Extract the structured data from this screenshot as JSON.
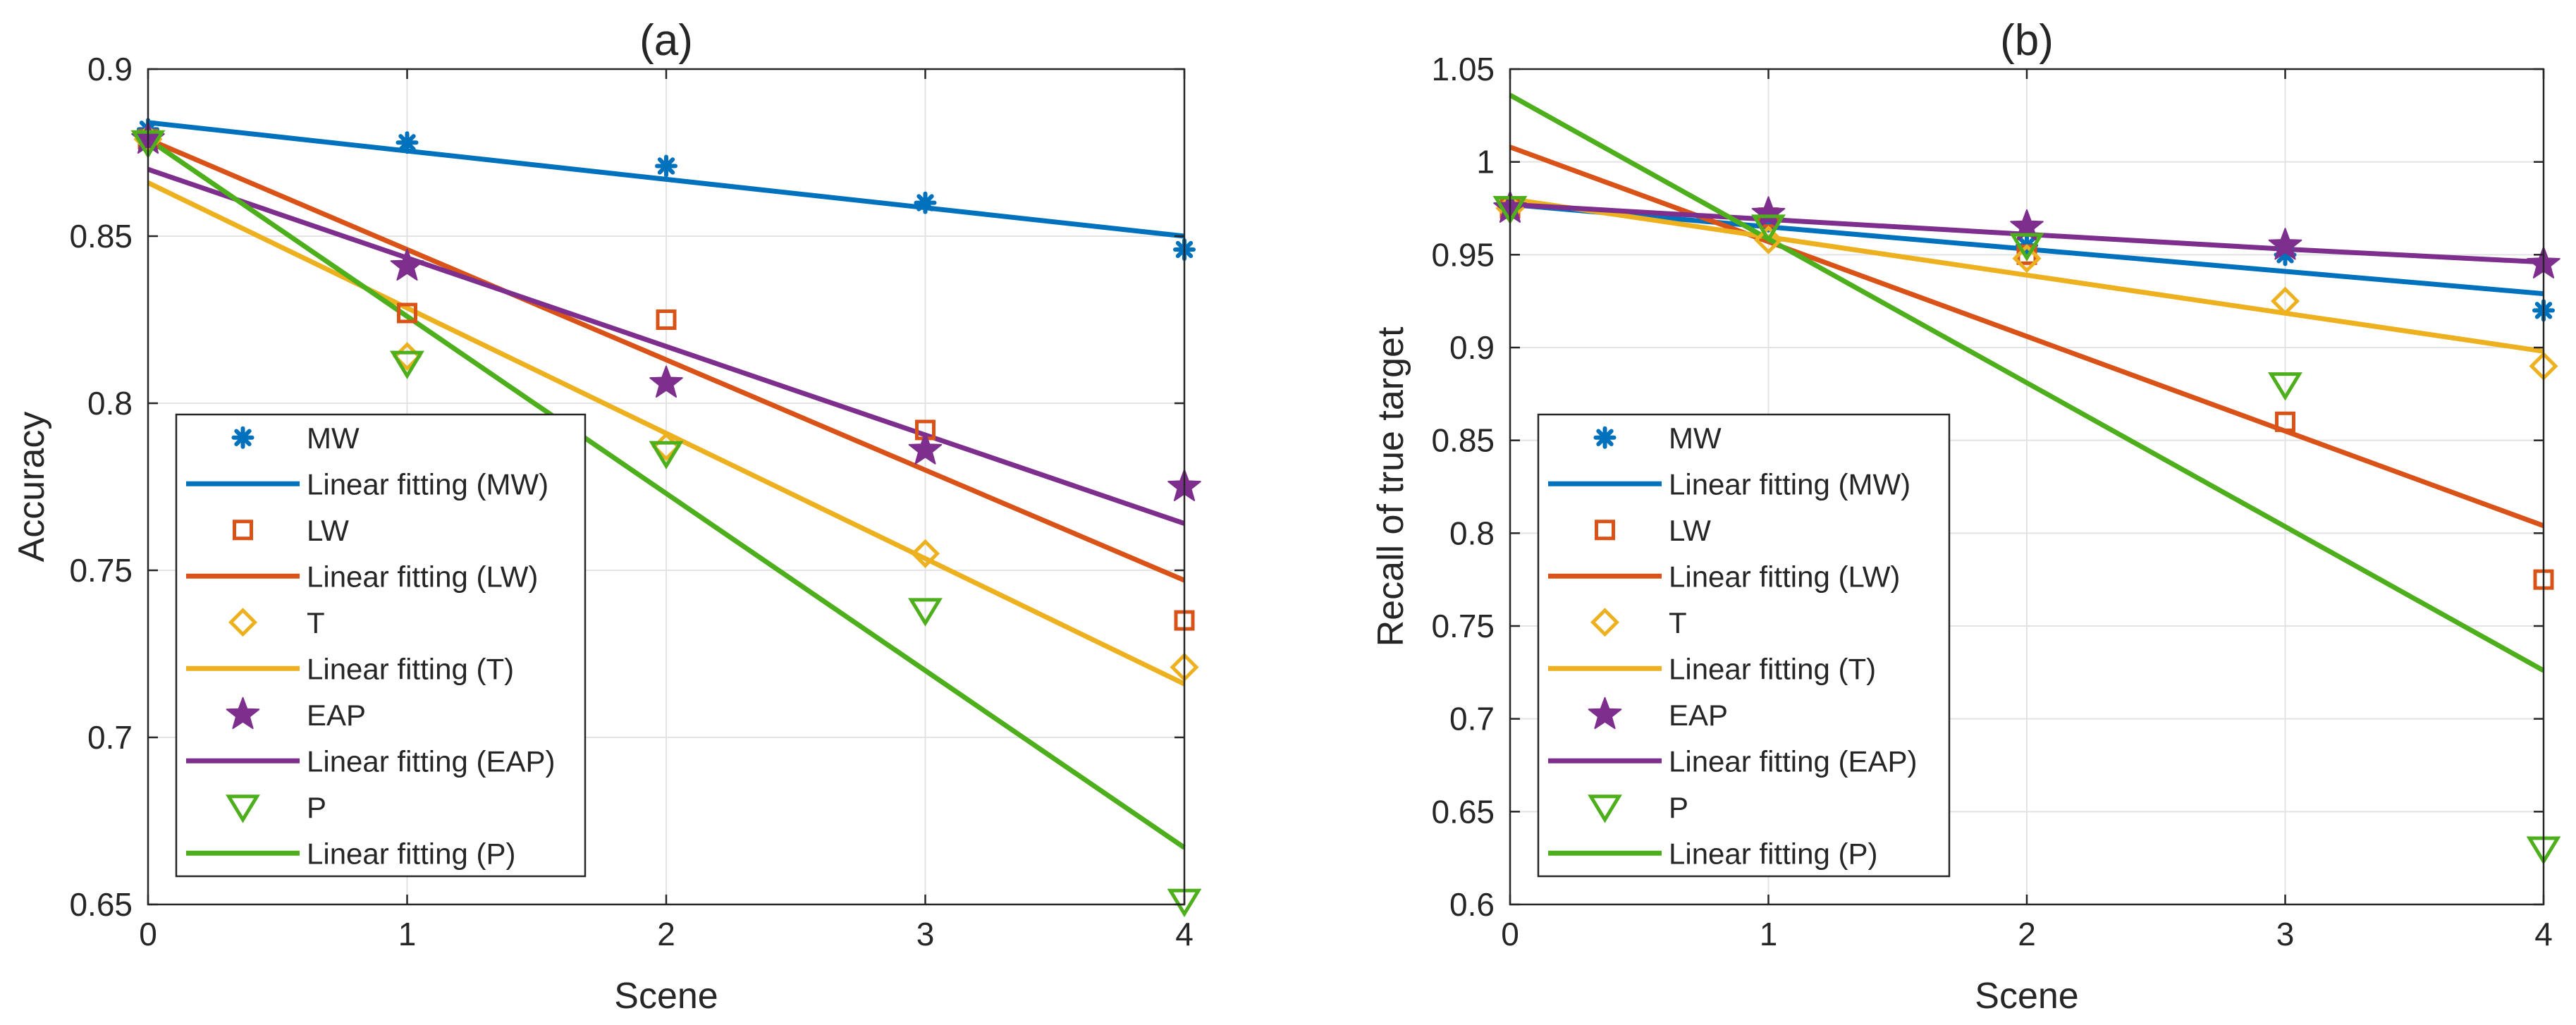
{
  "chart_data": [
    {
      "type": "scatter",
      "title": "(a)",
      "xlabel": "Scene",
      "ylabel": "Accuracy",
      "xlim": [
        0,
        4
      ],
      "ylim": [
        0.65,
        0.9
      ],
      "xticks": [
        0,
        1,
        2,
        3,
        4
      ],
      "yticks": [
        0.65,
        0.7,
        0.75,
        0.8,
        0.85,
        0.9
      ],
      "xtick_labels": [
        "0",
        "1",
        "2",
        "3",
        "4"
      ],
      "ytick_labels": [
        "0.65",
        "0.7",
        "0.75",
        "0.8",
        "0.85",
        "0.9"
      ],
      "grid": true,
      "legend_position": "bottom-left",
      "x": [
        0,
        1,
        2,
        3,
        4
      ],
      "series": [
        {
          "name": "MW",
          "marker": "asterisk",
          "color": "#0072BD",
          "values": [
            0.882,
            0.878,
            0.871,
            0.86,
            0.846
          ]
        },
        {
          "name": "Linear fitting (MW)",
          "kind": "line",
          "color": "#0072BD",
          "values": [
            0.884,
            0.8755,
            0.867,
            0.8585,
            0.85
          ]
        },
        {
          "name": "LW",
          "marker": "square",
          "color": "#D95319",
          "values": [
            0.879,
            0.827,
            0.825,
            0.792,
            0.735
          ]
        },
        {
          "name": "Linear fitting (LW)",
          "kind": "line",
          "color": "#D95319",
          "values": [
            0.879,
            0.846,
            0.813,
            0.78,
            0.747
          ]
        },
        {
          "name": "T",
          "marker": "diamond",
          "color": "#EDB120",
          "values": [
            0.879,
            0.814,
            0.787,
            0.755,
            0.721
          ]
        },
        {
          "name": "Linear fitting (T)",
          "kind": "line",
          "color": "#EDB120",
          "values": [
            0.866,
            0.8285,
            0.791,
            0.7535,
            0.716
          ]
        },
        {
          "name": "EAP",
          "marker": "star",
          "color": "#7E2F8E",
          "values": [
            0.879,
            0.841,
            0.806,
            0.786,
            0.775
          ]
        },
        {
          "name": "Linear fitting (EAP)",
          "kind": "line",
          "color": "#7E2F8E",
          "values": [
            0.87,
            0.8435,
            0.817,
            0.7905,
            0.764
          ]
        },
        {
          "name": "P",
          "marker": "triangle-down",
          "color": "#4DAF1C",
          "values": [
            0.878,
            0.812,
            0.785,
            0.738,
            0.651
          ]
        },
        {
          "name": "Linear fitting (P)",
          "kind": "line",
          "color": "#4DAF1C",
          "values": [
            0.879,
            0.826,
            0.773,
            0.72,
            0.667
          ]
        }
      ]
    },
    {
      "type": "scatter",
      "title": "(b)",
      "xlabel": "Scene",
      "ylabel": "Recall of true target",
      "xlim": [
        0,
        4
      ],
      "ylim": [
        0.6,
        1.05
      ],
      "xticks": [
        0,
        1,
        2,
        3,
        4
      ],
      "yticks": [
        0.6,
        0.65,
        0.7,
        0.75,
        0.8,
        0.85,
        0.9,
        0.95,
        1.0,
        1.05
      ],
      "xtick_labels": [
        "0",
        "1",
        "2",
        "3",
        "4"
      ],
      "ytick_labels": [
        "0.6",
        "0.65",
        "0.7",
        "0.75",
        "0.8",
        "0.85",
        "0.9",
        "0.95",
        "1",
        "1.05"
      ],
      "grid": true,
      "legend_position": "bottom-left",
      "x": [
        0,
        1,
        2,
        3,
        4
      ],
      "series": [
        {
          "name": "MW",
          "marker": "asterisk",
          "color": "#0072BD",
          "values": [
            0.975,
            0.968,
            0.955,
            0.95,
            0.92
          ]
        },
        {
          "name": "Linear fitting (MW)",
          "kind": "line",
          "color": "#0072BD",
          "values": [
            0.977,
            0.965,
            0.953,
            0.941,
            0.929
          ]
        },
        {
          "name": "LW",
          "marker": "square",
          "color": "#D95319",
          "values": [
            0.975,
            0.97,
            0.95,
            0.86,
            0.775
          ]
        },
        {
          "name": "Linear fitting (LW)",
          "kind": "line",
          "color": "#D95319",
          "values": [
            1.008,
            0.957,
            0.906,
            0.855,
            0.804
          ]
        },
        {
          "name": "T",
          "marker": "diamond",
          "color": "#EDB120",
          "values": [
            0.975,
            0.958,
            0.948,
            0.925,
            0.89
          ]
        },
        {
          "name": "Linear fitting (T)",
          "kind": "line",
          "color": "#EDB120",
          "values": [
            0.98,
            0.9595,
            0.939,
            0.9185,
            0.898
          ]
        },
        {
          "name": "EAP",
          "marker": "star",
          "color": "#7E2F8E",
          "values": [
            0.975,
            0.972,
            0.965,
            0.955,
            0.945
          ]
        },
        {
          "name": "Linear fitting (EAP)",
          "kind": "line",
          "color": "#7E2F8E",
          "values": [
            0.977,
            0.969,
            0.961,
            0.953,
            0.946
          ]
        },
        {
          "name": "P",
          "marker": "triangle-down",
          "color": "#4DAF1C",
          "values": [
            0.975,
            0.965,
            0.955,
            0.88,
            0.63
          ]
        },
        {
          "name": "Linear fitting (P)",
          "kind": "line",
          "color": "#4DAF1C",
          "values": [
            1.036,
            0.9585,
            0.881,
            0.8035,
            0.726
          ]
        }
      ]
    }
  ]
}
